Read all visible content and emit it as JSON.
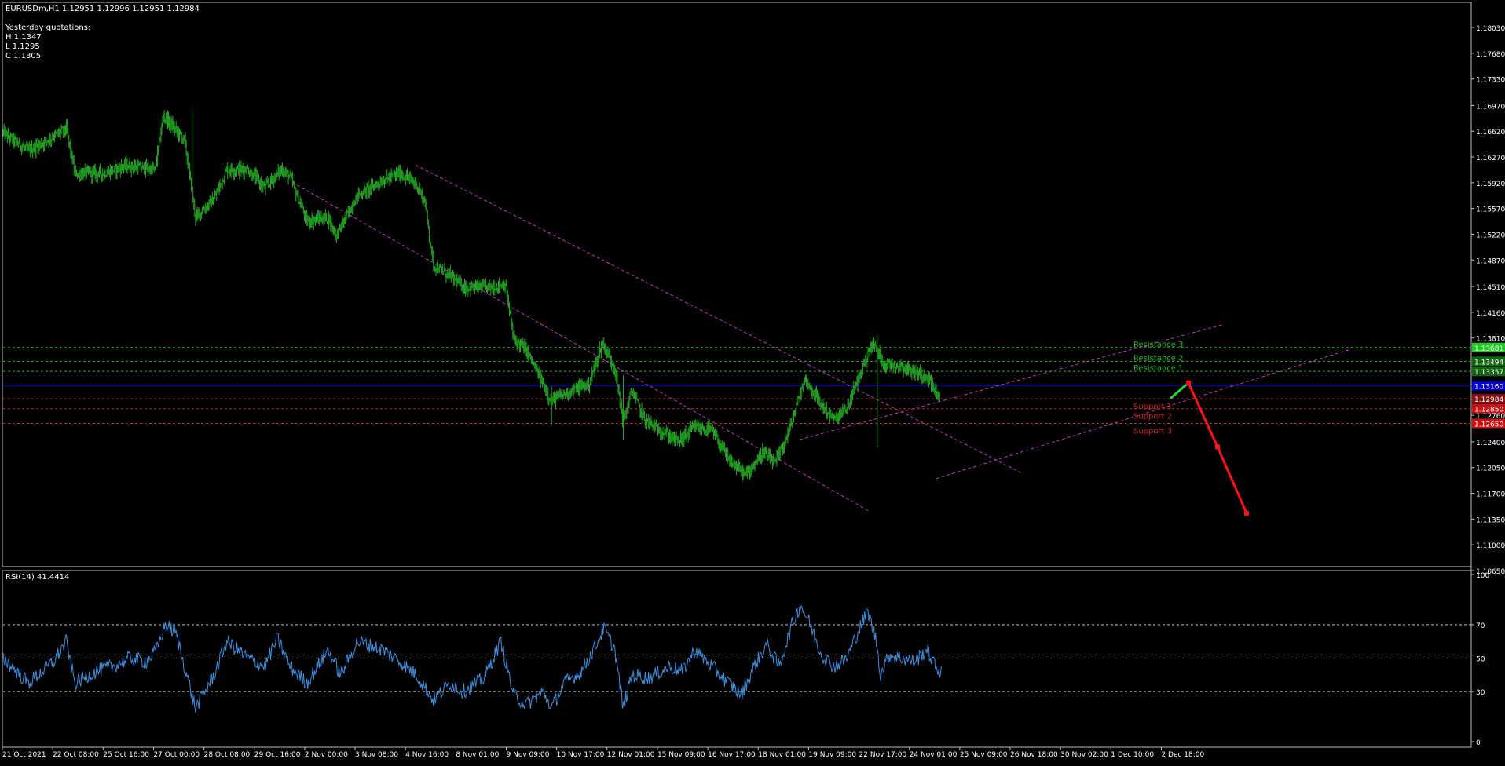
{
  "header": {
    "symbol_line": "EURUSDm,H1  1.12951 1.12996 1.12951 1.12984",
    "yesterday_title": "Yesterday quotations:",
    "high": "H 1.1347",
    "low": "L 1.1295",
    "close": "C 1.1305"
  },
  "rsi_title": "RSI(14) 41.4414",
  "colors": {
    "background": "#000000",
    "candles": "#22aa22",
    "channel": "#cc33cc",
    "resistance": "#22bb22",
    "support": "#cc2222",
    "pivot": "#0000ff",
    "rsi": "#3a8fe0",
    "forecast_up": "#22dd22",
    "forecast_down": "#ff1111"
  },
  "chart_data": [
    {
      "type": "candlestick",
      "title": "EURUSDm,H1",
      "ylim": [
        1.1065,
        1.1819
      ],
      "y_ticks": [
        "1.18030",
        "1.17680",
        "1.17330",
        "1.16970",
        "1.16620",
        "1.16270",
        "1.15920",
        "1.15570",
        "1.15220",
        "1.14870",
        "1.14510",
        "1.14160",
        "1.13810",
        "1.12760",
        "1.12400",
        "1.12050",
        "1.11700",
        "1.11350",
        "1.11000",
        "1.10650"
      ],
      "x_ticks": [
        "21 Oct 2021",
        "22 Oct 08:00",
        "25 Oct 16:00",
        "27 Oct 00:00",
        "28 Oct 08:00",
        "29 Oct 16:00",
        "2 Nov 00:00",
        "3 Nov 08:00",
        "4 Nov 16:00",
        "8 Nov 01:00",
        "9 Nov 09:00",
        "10 Nov 17:00",
        "12 Nov 01:00",
        "15 Nov 09:00",
        "16 Nov 17:00",
        "18 Nov 01:00",
        "19 Nov 09:00",
        "22 Nov 17:00",
        "24 Nov 01:00",
        "25 Nov 09:00",
        "26 Nov 18:00",
        "30 Nov 02:00",
        "1 Dec 10:00",
        "2 Dec 18:00"
      ],
      "price_path": [
        {
          "bar": 0,
          "price": 1.166
        },
        {
          "bar": 30,
          "price": 1.1635
        },
        {
          "bar": 75,
          "price": 1.1665
        },
        {
          "bar": 85,
          "price": 1.1605
        },
        {
          "bar": 120,
          "price": 1.1605
        },
        {
          "bar": 145,
          "price": 1.1615
        },
        {
          "bar": 180,
          "price": 1.161
        },
        {
          "bar": 190,
          "price": 1.1683
        },
        {
          "bar": 215,
          "price": 1.165
        },
        {
          "bar": 228,
          "price": 1.1545
        },
        {
          "bar": 250,
          "price": 1.157
        },
        {
          "bar": 265,
          "price": 1.161
        },
        {
          "bar": 290,
          "price": 1.161
        },
        {
          "bar": 310,
          "price": 1.1585
        },
        {
          "bar": 330,
          "price": 1.161
        },
        {
          "bar": 340,
          "price": 1.16
        },
        {
          "bar": 360,
          "price": 1.154
        },
        {
          "bar": 385,
          "price": 1.1545
        },
        {
          "bar": 395,
          "price": 1.152
        },
        {
          "bar": 420,
          "price": 1.1575
        },
        {
          "bar": 450,
          "price": 1.1595
        },
        {
          "bar": 470,
          "price": 1.1605
        },
        {
          "bar": 490,
          "price": 1.159
        },
        {
          "bar": 500,
          "price": 1.1565
        },
        {
          "bar": 510,
          "price": 1.148
        },
        {
          "bar": 530,
          "price": 1.1465
        },
        {
          "bar": 545,
          "price": 1.145
        },
        {
          "bar": 580,
          "price": 1.145
        },
        {
          "bar": 595,
          "price": 1.1455
        },
        {
          "bar": 605,
          "price": 1.138
        },
        {
          "bar": 620,
          "price": 1.1365
        },
        {
          "bar": 650,
          "price": 1.1295
        },
        {
          "bar": 665,
          "price": 1.1305
        },
        {
          "bar": 695,
          "price": 1.132
        },
        {
          "bar": 710,
          "price": 1.1375
        },
        {
          "bar": 725,
          "price": 1.134
        },
        {
          "bar": 735,
          "price": 1.1265
        },
        {
          "bar": 745,
          "price": 1.131
        },
        {
          "bar": 760,
          "price": 1.127
        },
        {
          "bar": 780,
          "price": 1.1255
        },
        {
          "bar": 800,
          "price": 1.124
        },
        {
          "bar": 820,
          "price": 1.126
        },
        {
          "bar": 840,
          "price": 1.1255
        },
        {
          "bar": 860,
          "price": 1.1215
        },
        {
          "bar": 880,
          "price": 1.1195
        },
        {
          "bar": 900,
          "price": 1.1225
        },
        {
          "bar": 915,
          "price": 1.121
        },
        {
          "bar": 930,
          "price": 1.125
        },
        {
          "bar": 950,
          "price": 1.1325
        },
        {
          "bar": 970,
          "price": 1.129
        },
        {
          "bar": 985,
          "price": 1.127
        },
        {
          "bar": 1000,
          "price": 1.1285
        },
        {
          "bar": 1015,
          "price": 1.133
        },
        {
          "bar": 1030,
          "price": 1.1375
        },
        {
          "bar": 1045,
          "price": 1.1345
        },
        {
          "bar": 1060,
          "price": 1.1345
        },
        {
          "bar": 1080,
          "price": 1.1335
        },
        {
          "bar": 1095,
          "price": 1.133
        },
        {
          "bar": 1110,
          "price": 1.1298
        }
      ],
      "spikes": [
        {
          "bar": 224,
          "high": 1.1695,
          "low": 1.1585
        },
        {
          "bar": 650,
          "high": 1.1315,
          "low": 1.1263
        },
        {
          "bar": 735,
          "high": 1.133,
          "low": 1.1243
        },
        {
          "bar": 1036,
          "high": 1.1385,
          "low": 1.1233
        }
      ],
      "levels": [
        {
          "label": "Resistance 3",
          "price": 1.13681,
          "tag": "1.13681",
          "kind": "resistance"
        },
        {
          "label": "Resistance 2",
          "price": 1.13494,
          "tag": "1.13494",
          "kind": "resistance"
        },
        {
          "label": "Resistance 1",
          "price": 1.13357,
          "tag": "1.13357",
          "kind": "resistance"
        },
        {
          "label": "",
          "price": 1.1316,
          "tag": "1.13160",
          "kind": "pivot"
        },
        {
          "label": "Support 1",
          "price": 1.12984,
          "tag": "1.12984",
          "kind": "support"
        },
        {
          "label": "Support 2",
          "price": 1.1285,
          "tag": "1.12850",
          "kind": "support"
        },
        {
          "label": "Support 3",
          "price": 1.1265,
          "tag": "1.12650",
          "kind": "support"
        }
      ],
      "channel_lines": [
        {
          "from": [
            378,
            1.1589
          ],
          "to": [
            1106,
            1.1146
          ]
        },
        {
          "from": [
            529,
            1.1616
          ],
          "to": [
            1300,
            1.1198
          ]
        },
        {
          "from": [
            1018,
            1.1243
          ],
          "to": [
            1556,
            1.1399
          ]
        },
        {
          "from": [
            1192,
            1.119
          ],
          "to": [
            1720,
            1.1366
          ]
        }
      ],
      "forecast": {
        "up": [
          [
            1490,
            1.1299
          ],
          [
            1513,
            1.132
          ]
        ],
        "down": [
          [
            1513,
            1.132
          ],
          [
            1550,
            1.1233
          ],
          [
            1587,
            1.1143
          ]
        ]
      }
    },
    {
      "type": "line",
      "title": "RSI(14) 41.4414",
      "ylim": [
        0,
        100
      ],
      "y_ticks": [
        "100",
        "70",
        "50",
        "30",
        "0"
      ],
      "levels": [
        70,
        50,
        30
      ],
      "rsi_path": [
        {
          "bar": 0,
          "value": 50
        },
        {
          "bar": 30,
          "value": 35
        },
        {
          "bar": 60,
          "value": 48
        },
        {
          "bar": 75,
          "value": 60
        },
        {
          "bar": 85,
          "value": 35
        },
        {
          "bar": 110,
          "value": 42
        },
        {
          "bar": 130,
          "value": 45
        },
        {
          "bar": 150,
          "value": 50
        },
        {
          "bar": 170,
          "value": 48
        },
        {
          "bar": 182,
          "value": 55
        },
        {
          "bar": 192,
          "value": 70
        },
        {
          "bar": 205,
          "value": 65
        },
        {
          "bar": 215,
          "value": 45
        },
        {
          "bar": 228,
          "value": 20
        },
        {
          "bar": 250,
          "value": 40
        },
        {
          "bar": 265,
          "value": 60
        },
        {
          "bar": 290,
          "value": 50
        },
        {
          "bar": 310,
          "value": 45
        },
        {
          "bar": 325,
          "value": 62
        },
        {
          "bar": 340,
          "value": 45
        },
        {
          "bar": 360,
          "value": 35
        },
        {
          "bar": 385,
          "value": 55
        },
        {
          "bar": 400,
          "value": 40
        },
        {
          "bar": 420,
          "value": 60
        },
        {
          "bar": 450,
          "value": 55
        },
        {
          "bar": 470,
          "value": 48
        },
        {
          "bar": 490,
          "value": 40
        },
        {
          "bar": 510,
          "value": 25
        },
        {
          "bar": 530,
          "value": 35
        },
        {
          "bar": 545,
          "value": 30
        },
        {
          "bar": 570,
          "value": 38
        },
        {
          "bar": 590,
          "value": 60
        },
        {
          "bar": 605,
          "value": 28
        },
        {
          "bar": 620,
          "value": 22
        },
        {
          "bar": 640,
          "value": 30
        },
        {
          "bar": 650,
          "value": 20
        },
        {
          "bar": 665,
          "value": 35
        },
        {
          "bar": 685,
          "value": 42
        },
        {
          "bar": 700,
          "value": 55
        },
        {
          "bar": 712,
          "value": 68
        },
        {
          "bar": 725,
          "value": 55
        },
        {
          "bar": 735,
          "value": 20
        },
        {
          "bar": 745,
          "value": 40
        },
        {
          "bar": 765,
          "value": 38
        },
        {
          "bar": 790,
          "value": 45
        },
        {
          "bar": 805,
          "value": 42
        },
        {
          "bar": 820,
          "value": 55
        },
        {
          "bar": 840,
          "value": 45
        },
        {
          "bar": 860,
          "value": 35
        },
        {
          "bar": 875,
          "value": 28
        },
        {
          "bar": 890,
          "value": 45
        },
        {
          "bar": 905,
          "value": 58
        },
        {
          "bar": 920,
          "value": 45
        },
        {
          "bar": 935,
          "value": 70
        },
        {
          "bar": 945,
          "value": 82
        },
        {
          "bar": 955,
          "value": 72
        },
        {
          "bar": 970,
          "value": 52
        },
        {
          "bar": 985,
          "value": 45
        },
        {
          "bar": 1000,
          "value": 50
        },
        {
          "bar": 1015,
          "value": 68
        },
        {
          "bar": 1025,
          "value": 78
        },
        {
          "bar": 1035,
          "value": 60
        },
        {
          "bar": 1040,
          "value": 40
        },
        {
          "bar": 1050,
          "value": 52
        },
        {
          "bar": 1065,
          "value": 50
        },
        {
          "bar": 1080,
          "value": 48
        },
        {
          "bar": 1095,
          "value": 55
        },
        {
          "bar": 1105,
          "value": 45
        },
        {
          "bar": 1112,
          "value": 41.4414
        }
      ]
    }
  ]
}
